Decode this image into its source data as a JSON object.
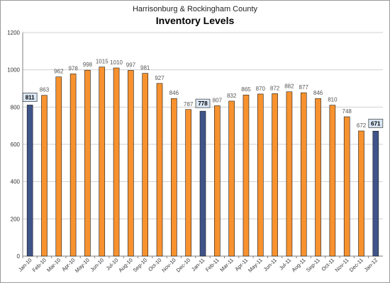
{
  "chart_data": {
    "type": "bar",
    "subtitle": "Harrisonburg & Rockingham County",
    "title": "Inventory Levels",
    "xlabel": "",
    "ylabel": "",
    "ylim": [
      0,
      1200
    ],
    "yticks": [
      0,
      200,
      400,
      600,
      800,
      1000,
      1200
    ],
    "grid": true,
    "legend": "none",
    "categories": [
      "Jan-10",
      "Feb-10",
      "Mar-10",
      "Apr-10",
      "May-10",
      "Jun-10",
      "Jul-10",
      "Aug-10",
      "Sep-10",
      "Oct-10",
      "Nov-10",
      "Dec-10",
      "Jan-11",
      "Feb-11",
      "Mar-11",
      "Apr-11",
      "May-11",
      "Jun-11",
      "Jul-11",
      "Aug-11",
      "Sep-11",
      "Oct-11",
      "Nov-11",
      "Dec-11",
      "Jan-12"
    ],
    "values": [
      811,
      863,
      962,
      978,
      998,
      1015,
      1010,
      997,
      981,
      927,
      846,
      787,
      778,
      807,
      832,
      865,
      870,
      872,
      882,
      877,
      846,
      810,
      748,
      672,
      671
    ],
    "highlighted": [
      "Jan-10",
      "Jan-11",
      "Jan-12"
    ],
    "colors": {
      "bar": "#f7922f",
      "bar_highlight": "#3f5489",
      "bar_outline": "#1a1a1a",
      "grid": "#d0d0d0",
      "highlight_label_bg": "#d9e6f5"
    }
  }
}
